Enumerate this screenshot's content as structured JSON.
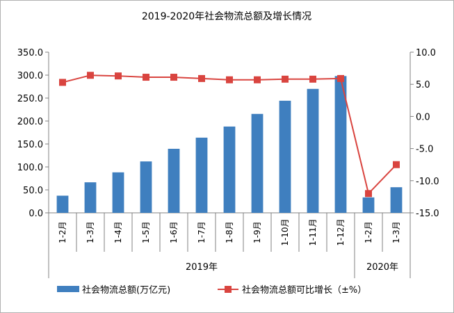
{
  "colors": {
    "bar": "#3f7fbf",
    "line": "#d9443f",
    "axis": "#808080",
    "frame": "#a0a0a0"
  },
  "chart_data": {
    "type": "bar",
    "title": "2019-2020年社会物流总额及增长情况",
    "categories": [
      "1-2月",
      "1-3月",
      "1-4月",
      "1-5月",
      "1-6月",
      "1-7月",
      "1-8月",
      "1-9月",
      "1-10月",
      "1-11月",
      "1-12月",
      "1-2月",
      "1-3月"
    ],
    "groups": [
      {
        "label": "2019年",
        "count": 11
      },
      {
        "label": "2020年",
        "count": 2
      }
    ],
    "series": [
      {
        "name": "社会物流总额(万亿元)",
        "type": "bar",
        "axis": "left",
        "values": [
          37.4,
          66.5,
          88.2,
          112.0,
          139.5,
          163.8,
          188.0,
          215.5,
          244.2,
          270.0,
          298.0,
          33.6,
          55.8
        ]
      },
      {
        "name": "社会物流总额可比增长（±%）",
        "type": "line",
        "axis": "right",
        "values": [
          5.3,
          6.4,
          6.3,
          6.1,
          6.1,
          5.9,
          5.7,
          5.7,
          5.8,
          5.8,
          5.9,
          -12.0,
          -7.5
        ]
      }
    ],
    "y_left": {
      "min": 0,
      "max": 350,
      "step": 50,
      "ticks": [
        "0.0",
        "50.0",
        "100.0",
        "150.0",
        "200.0",
        "250.0",
        "300.0",
        "350.0"
      ]
    },
    "y_right": {
      "min": -15,
      "max": 10,
      "step": 5,
      "ticks": [
        "-15.0",
        "-10.0",
        "-5.0",
        "0.0",
        "5.0",
        "10.0"
      ]
    },
    "grid": false,
    "legend_position": "bottom"
  }
}
